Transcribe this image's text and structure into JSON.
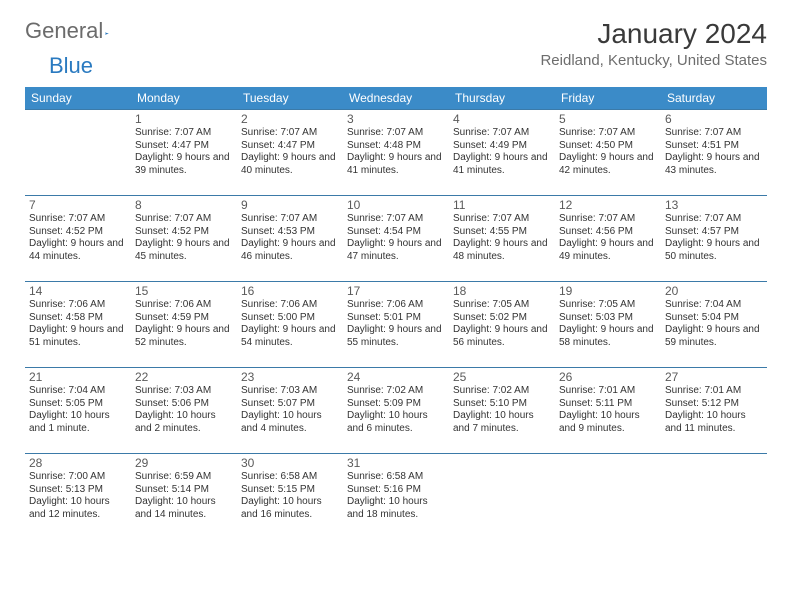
{
  "logo": {
    "word1": "General",
    "word2": "Blue"
  },
  "title": "January 2024",
  "location": "Reidland, Kentucky, United States",
  "colors": {
    "header_bg": "#3b8bc8",
    "header_fg": "#ffffff",
    "rule": "#3b7aa8",
    "logo_gray": "#6b6b6b",
    "logo_blue": "#2a7ac0",
    "title_color": "#3a3a3a",
    "location_color": "#6d6d6d",
    "text_color": "#333333"
  },
  "weekdays": [
    "Sunday",
    "Monday",
    "Tuesday",
    "Wednesday",
    "Thursday",
    "Friday",
    "Saturday"
  ],
  "weeks": [
    [
      null,
      {
        "n": "1",
        "sr": "7:07 AM",
        "ss": "4:47 PM",
        "dl": "9 hours and 39 minutes."
      },
      {
        "n": "2",
        "sr": "7:07 AM",
        "ss": "4:47 PM",
        "dl": "9 hours and 40 minutes."
      },
      {
        "n": "3",
        "sr": "7:07 AM",
        "ss": "4:48 PM",
        "dl": "9 hours and 41 minutes."
      },
      {
        "n": "4",
        "sr": "7:07 AM",
        "ss": "4:49 PM",
        "dl": "9 hours and 41 minutes."
      },
      {
        "n": "5",
        "sr": "7:07 AM",
        "ss": "4:50 PM",
        "dl": "9 hours and 42 minutes."
      },
      {
        "n": "6",
        "sr": "7:07 AM",
        "ss": "4:51 PM",
        "dl": "9 hours and 43 minutes."
      }
    ],
    [
      {
        "n": "7",
        "sr": "7:07 AM",
        "ss": "4:52 PM",
        "dl": "9 hours and 44 minutes."
      },
      {
        "n": "8",
        "sr": "7:07 AM",
        "ss": "4:52 PM",
        "dl": "9 hours and 45 minutes."
      },
      {
        "n": "9",
        "sr": "7:07 AM",
        "ss": "4:53 PM",
        "dl": "9 hours and 46 minutes."
      },
      {
        "n": "10",
        "sr": "7:07 AM",
        "ss": "4:54 PM",
        "dl": "9 hours and 47 minutes."
      },
      {
        "n": "11",
        "sr": "7:07 AM",
        "ss": "4:55 PM",
        "dl": "9 hours and 48 minutes."
      },
      {
        "n": "12",
        "sr": "7:07 AM",
        "ss": "4:56 PM",
        "dl": "9 hours and 49 minutes."
      },
      {
        "n": "13",
        "sr": "7:07 AM",
        "ss": "4:57 PM",
        "dl": "9 hours and 50 minutes."
      }
    ],
    [
      {
        "n": "14",
        "sr": "7:06 AM",
        "ss": "4:58 PM",
        "dl": "9 hours and 51 minutes."
      },
      {
        "n": "15",
        "sr": "7:06 AM",
        "ss": "4:59 PM",
        "dl": "9 hours and 52 minutes."
      },
      {
        "n": "16",
        "sr": "7:06 AM",
        "ss": "5:00 PM",
        "dl": "9 hours and 54 minutes."
      },
      {
        "n": "17",
        "sr": "7:06 AM",
        "ss": "5:01 PM",
        "dl": "9 hours and 55 minutes."
      },
      {
        "n": "18",
        "sr": "7:05 AM",
        "ss": "5:02 PM",
        "dl": "9 hours and 56 minutes."
      },
      {
        "n": "19",
        "sr": "7:05 AM",
        "ss": "5:03 PM",
        "dl": "9 hours and 58 minutes."
      },
      {
        "n": "20",
        "sr": "7:04 AM",
        "ss": "5:04 PM",
        "dl": "9 hours and 59 minutes."
      }
    ],
    [
      {
        "n": "21",
        "sr": "7:04 AM",
        "ss": "5:05 PM",
        "dl": "10 hours and 1 minute."
      },
      {
        "n": "22",
        "sr": "7:03 AM",
        "ss": "5:06 PM",
        "dl": "10 hours and 2 minutes."
      },
      {
        "n": "23",
        "sr": "7:03 AM",
        "ss": "5:07 PM",
        "dl": "10 hours and 4 minutes."
      },
      {
        "n": "24",
        "sr": "7:02 AM",
        "ss": "5:09 PM",
        "dl": "10 hours and 6 minutes."
      },
      {
        "n": "25",
        "sr": "7:02 AM",
        "ss": "5:10 PM",
        "dl": "10 hours and 7 minutes."
      },
      {
        "n": "26",
        "sr": "7:01 AM",
        "ss": "5:11 PM",
        "dl": "10 hours and 9 minutes."
      },
      {
        "n": "27",
        "sr": "7:01 AM",
        "ss": "5:12 PM",
        "dl": "10 hours and 11 minutes."
      }
    ],
    [
      {
        "n": "28",
        "sr": "7:00 AM",
        "ss": "5:13 PM",
        "dl": "10 hours and 12 minutes."
      },
      {
        "n": "29",
        "sr": "6:59 AM",
        "ss": "5:14 PM",
        "dl": "10 hours and 14 minutes."
      },
      {
        "n": "30",
        "sr": "6:58 AM",
        "ss": "5:15 PM",
        "dl": "10 hours and 16 minutes."
      },
      {
        "n": "31",
        "sr": "6:58 AM",
        "ss": "5:16 PM",
        "dl": "10 hours and 18 minutes."
      },
      null,
      null,
      null
    ]
  ],
  "labels": {
    "sunrise": "Sunrise:",
    "sunset": "Sunset:",
    "daylight": "Daylight:"
  }
}
